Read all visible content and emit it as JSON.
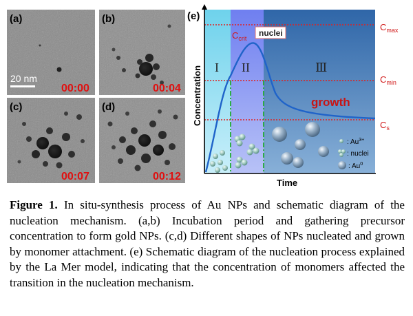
{
  "panels": [
    {
      "label": "(a)",
      "time": "00:00",
      "scale": "20 nm"
    },
    {
      "label": "(b)",
      "time": "00:04"
    },
    {
      "label": "(c)",
      "time": "00:07"
    },
    {
      "label": "(d)",
      "time": "00:12"
    }
  ],
  "diagram": {
    "label": "(e)",
    "regions": [
      "I",
      "II",
      "Ⅲ"
    ],
    "levels": {
      "cmax": {
        "main": "C",
        "sub": "max"
      },
      "cmin": {
        "main": "C",
        "sub": "min"
      },
      "cs": {
        "main": "C",
        "sub": "s"
      },
      "ccrit": {
        "main": "C",
        "sub": "crit"
      }
    },
    "nuclei_callout": "nuclei",
    "growth_label": "growth",
    "y_axis": "Concentration",
    "x_axis": "Time",
    "legend": [
      {
        "main": ": Au",
        "sup": "3+"
      },
      {
        "main": ": nuclei",
        "sup": ""
      },
      {
        "main": ": Au",
        "sup": "0"
      }
    ],
    "colors": {
      "region1": "#9fdff0",
      "region2": "#8f9cf2",
      "region3": "#3a78b8",
      "curve": "#2a6fcc",
      "level_line": "#e02020",
      "boundary": "#22aa33"
    }
  },
  "caption": {
    "label": "Figure 1.",
    "text": " In situ-synthesis process of Au NPs and schematic diagram of the nucleation mechanism. (a,b) Incubation period and gathering precursor concentration to form gold NPs. (c,d) Different shapes of NPs nucleated and grown by monomer attachment. (e) Schematic diagram of the nucleation process explained by the La Mer model, indicating that the concentration of monomers affected the transition in the nucleation mechanism."
  }
}
